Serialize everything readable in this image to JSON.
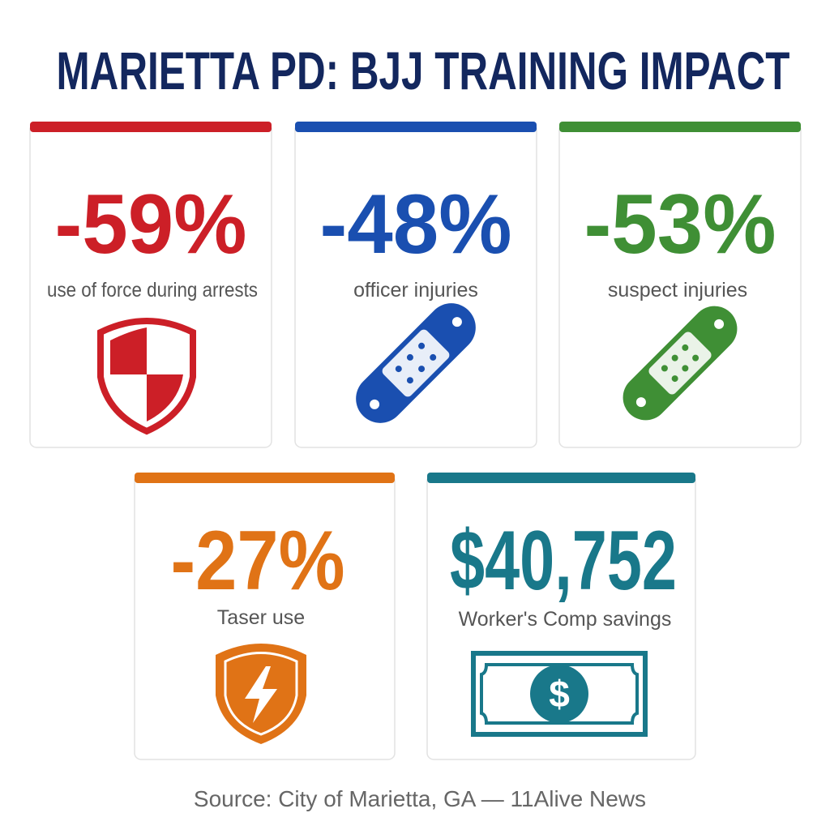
{
  "title": "MARIETTA PD: BJJ TRAINING IMPACT",
  "cards": [
    {
      "value": "-59%",
      "label": "use of force during arrests"
    },
    {
      "value": "-48%",
      "label": "officer injuries"
    },
    {
      "value": "-53%",
      "label": "suspect injuries"
    },
    {
      "value": "-27%",
      "label": "Taser use"
    },
    {
      "value": "$40,752",
      "label": "Worker's Comp savings"
    }
  ],
  "source": "Source: City of Marietta, GA — 11Alive News"
}
